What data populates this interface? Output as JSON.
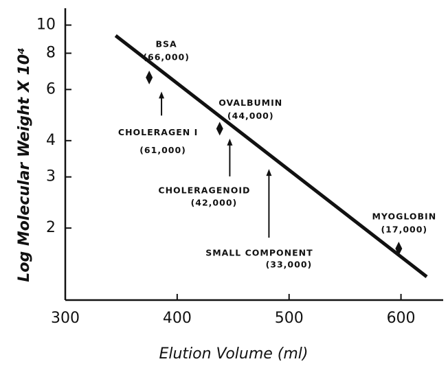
{
  "chart_data": {
    "type": "scatter",
    "xlabel": "Elution Volume (ml)",
    "ylabel": "Log Molecular Weight X 10⁴",
    "xlim": [
      300,
      650
    ],
    "xticks": [
      300,
      400,
      500,
      600
    ],
    "ylim": [
      1.13,
      12.2
    ],
    "ylog": true,
    "yticks": [
      2,
      3,
      4,
      6,
      8,
      10
    ],
    "color": "#111111",
    "fit_line": {
      "x": [
        345,
        623
      ],
      "y": [
        9.2,
        1.36
      ]
    },
    "standards": {
      "names": [
        "BSA",
        "OVALBUMIN",
        "MYOGLOBIN"
      ],
      "x": [
        375,
        438,
        598
      ],
      "y": [
        6.6,
        4.4,
        1.7
      ],
      "value_labels": [
        "(66,000)",
        "(44,000)",
        "(17,000)"
      ]
    },
    "unknowns": {
      "names": [
        "CHOLERAGEN I",
        "CHOLERAGENOID",
        "SMALL COMPONENT"
      ],
      "x": [
        386,
        447,
        482
      ],
      "y": [
        6.1,
        4.2,
        3.3
      ],
      "value_labels": [
        "(61,000)",
        "(42,000)",
        "(33,000)"
      ]
    }
  }
}
